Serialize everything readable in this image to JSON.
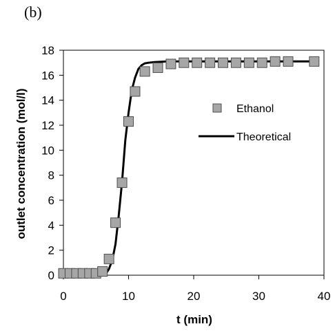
{
  "panel_label": "(b)",
  "chart_data": {
    "type": "scatter",
    "xlabel": "t (min)",
    "ylabel": "outlet concentration (mol/l)",
    "xlim": [
      0,
      40
    ],
    "ylim": [
      0,
      18
    ],
    "xticks": [
      "0",
      "10",
      "20",
      "30",
      "40"
    ],
    "yticks": [
      "0",
      "2",
      "4",
      "6",
      "8",
      "10",
      "12",
      "14",
      "16",
      "18"
    ],
    "grid": false,
    "legend_position": "center-right",
    "series": [
      {
        "name": "Ethanol",
        "kind": "markers",
        "marker": "square",
        "color": "#a6a6a6",
        "x": [
          0,
          1,
          2,
          3,
          4,
          5,
          6,
          7,
          8,
          9,
          10,
          11,
          12.5,
          14.5,
          16.5,
          18.5,
          20.5,
          22.5,
          24.5,
          26.5,
          28.5,
          30.5,
          32.5,
          34.5,
          38.5
        ],
        "y": [
          0.15,
          0.15,
          0.15,
          0.15,
          0.15,
          0.15,
          0.3,
          1.3,
          4.2,
          7.4,
          12.3,
          14.7,
          16.3,
          16.6,
          16.9,
          17.0,
          17.0,
          17.0,
          17.0,
          17.0,
          17.0,
          17.0,
          17.1,
          17.1,
          17.1
        ]
      },
      {
        "name": "Theoretical",
        "kind": "line",
        "color": "#000000",
        "x": [
          0,
          5.5,
          6.5,
          7,
          7.5,
          8,
          8.5,
          9,
          9.5,
          10,
          10.5,
          11,
          11.5,
          12,
          12.5,
          13,
          14,
          16,
          20,
          30,
          38.5
        ],
        "y": [
          0,
          0,
          0.1,
          0.5,
          1.2,
          2.5,
          4.8,
          7.5,
          10.8,
          13.0,
          14.8,
          15.8,
          16.5,
          16.8,
          16.95,
          17.0,
          17.05,
          17.1,
          17.1,
          17.1,
          17.1
        ]
      }
    ]
  }
}
